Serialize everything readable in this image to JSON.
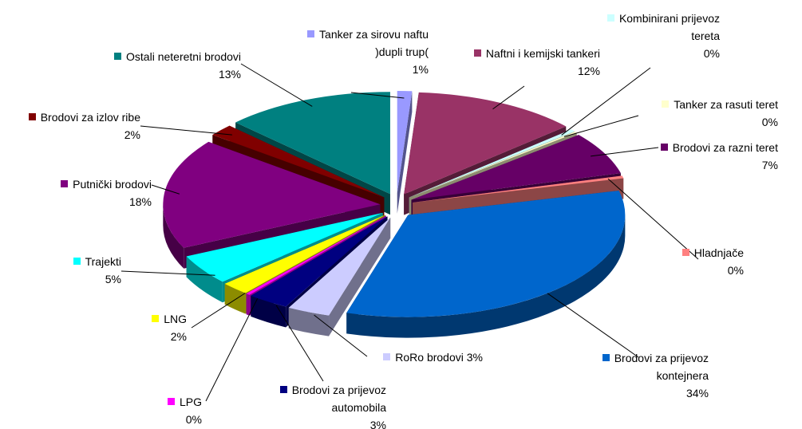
{
  "chart_data": {
    "type": "pie3d",
    "categories": [
      "Tanker za sirovu naftu )dupli trup(",
      "Naftni i kemijski tankeri",
      "Kombinirani prijevoz tereta",
      "Tanker za rasuti teret",
      "Brodovi za razni teret",
      "Hladnjače",
      "Brodovi za prijevoz kontejnera",
      "RoRo brodovi",
      "Brodovi za prijevoz automobila",
      "LPG",
      "LNG",
      "Trajekti",
      "Putnički brodovi",
      "Brodovi za izlov ribe",
      "Ostali neteretni brodovi"
    ],
    "values": [
      1.1,
      12.4,
      0.4,
      0.2,
      6.8,
      0.4,
      33.6,
      3.2,
      3.1,
      0.3,
      2.1,
      4.8,
      17.6,
      1.9,
      12.7
    ],
    "value_labels": [
      "1%",
      "12%",
      "0%",
      "0%",
      "7%",
      "0%",
      "34%",
      "3%",
      "3%",
      "0%",
      "2%",
      "5%",
      "18%",
      "2%",
      "13%"
    ],
    "colors": [
      "#9999ff",
      "#993366",
      "#ccffff",
      "#ffffcc",
      "#660066",
      "#ff8080",
      "#0066cc",
      "#ccccff",
      "#000080",
      "#ff00ff",
      "#ffff00",
      "#00ffff",
      "#800080",
      "#800000",
      "#008080"
    ]
  }
}
